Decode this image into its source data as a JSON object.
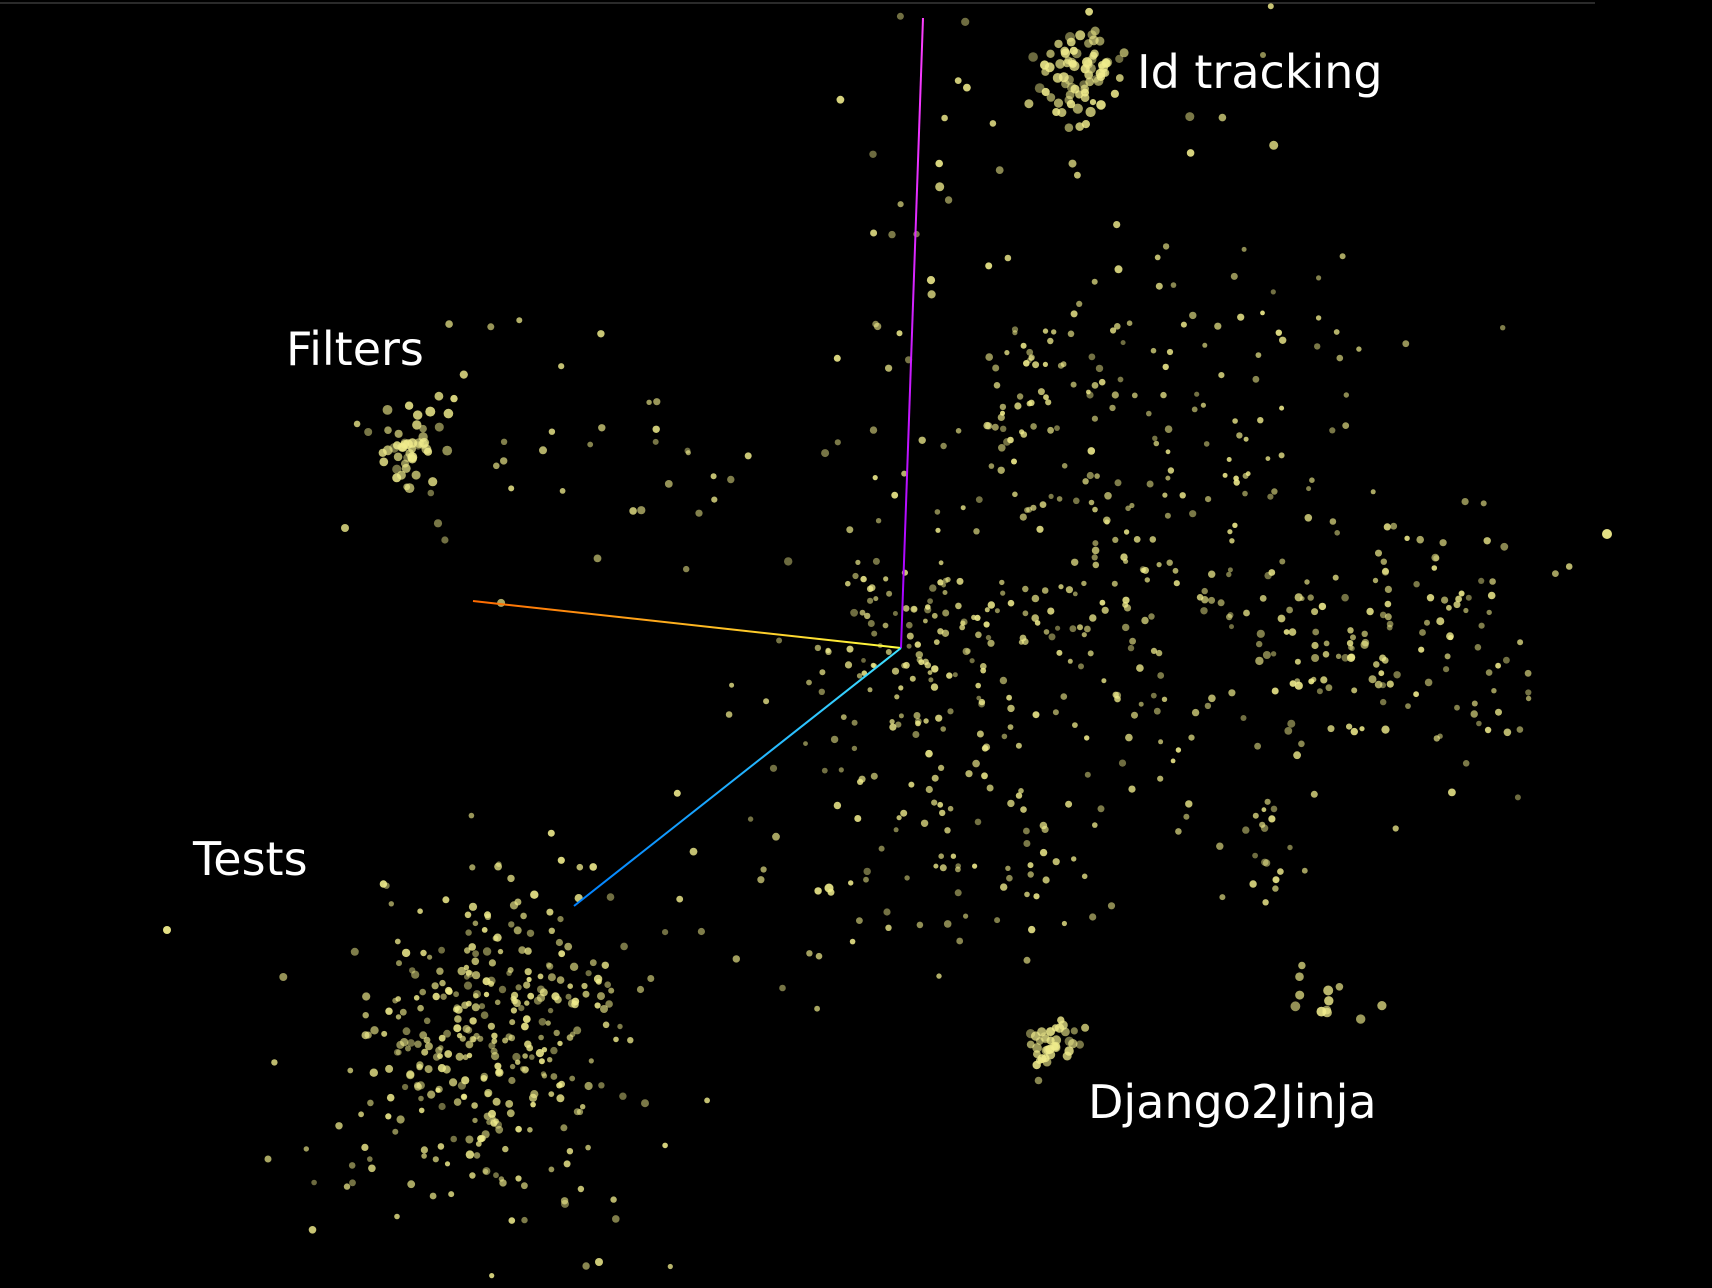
{
  "chart_data": {
    "type": "scatter",
    "dimensions": 3,
    "grid": false,
    "legend": "none",
    "background_color": "#000000",
    "point_color": "#f0ec8c",
    "axis_colors": {
      "x": [
        "#ff6a00",
        "#ffff40"
      ],
      "y": [
        "#ff40ff",
        "#a000ff"
      ],
      "z": [
        "#40e0ff",
        "#0080ff"
      ]
    },
    "annotations": [
      {
        "id": "id-tracking",
        "text": "Id tracking"
      },
      {
        "id": "filters",
        "text": "Filters"
      },
      {
        "id": "tests",
        "text": "Tests"
      },
      {
        "id": "django2jinja",
        "text": "Django2Jinja"
      }
    ]
  }
}
